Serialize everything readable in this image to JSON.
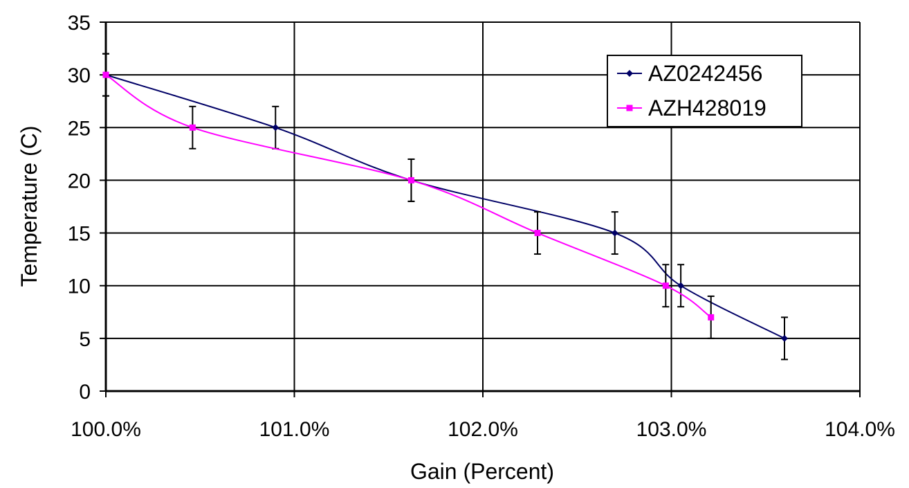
{
  "chart_data": {
    "type": "line",
    "xlabel": "Gain (Percent)",
    "ylabel": "Temperature (C)",
    "xlim": [
      1.0,
      1.04
    ],
    "ylim": [
      0,
      35
    ],
    "x_ticks": [
      1.0,
      1.01,
      1.02,
      1.03,
      1.04
    ],
    "x_tick_labels": [
      "100.0%",
      "101.0%",
      "102.0%",
      "103.0%",
      "104.0%"
    ],
    "y_ticks": [
      0,
      5,
      10,
      15,
      20,
      25,
      30,
      35
    ],
    "y_tick_labels": [
      "0",
      "5",
      "10",
      "15",
      "20",
      "25",
      "30",
      "35"
    ],
    "grid": true,
    "legend_position": "top-right",
    "series": [
      {
        "name": "AZ0242456",
        "color": "#000066",
        "marker": "diamond",
        "x": [
          1.0,
          1.009,
          1.0162,
          1.027,
          1.0305,
          1.036
        ],
        "y": [
          30,
          25,
          20,
          15,
          10,
          5
        ],
        "error": [
          2,
          2,
          2,
          2,
          2,
          2
        ]
      },
      {
        "name": "AZH428019",
        "color": "#FF00FF",
        "marker": "square",
        "x": [
          1.0,
          1.0046,
          1.0162,
          1.0229,
          1.0297,
          1.0321
        ],
        "y": [
          30,
          25,
          20,
          15,
          10,
          7
        ],
        "error": [
          2,
          2,
          2,
          2,
          2,
          2
        ]
      }
    ]
  }
}
